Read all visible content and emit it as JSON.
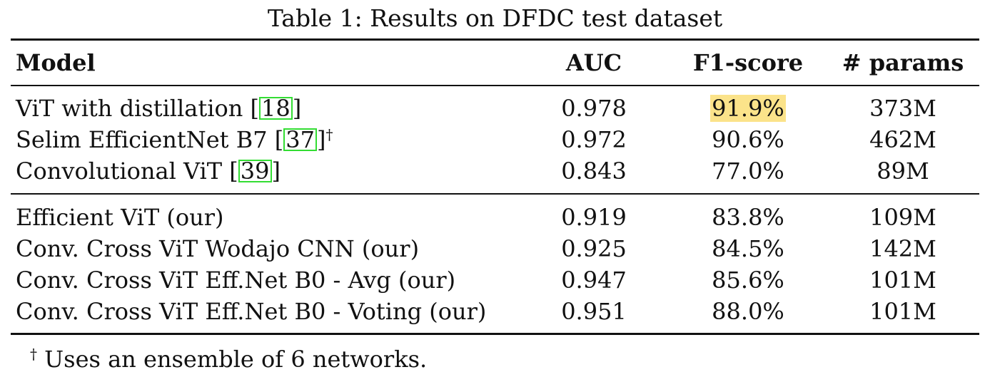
{
  "caption": "Table 1: Results on DFDC test dataset",
  "headers": {
    "model": "Model",
    "auc": "AUC",
    "f1": "F1-score",
    "params": "# params"
  },
  "group1": [
    {
      "model": "ViT with distillation [",
      "ref": "18",
      "after": "]",
      "dagger": "",
      "auc": "0.978",
      "f1": "91.9%",
      "params": "373M"
    },
    {
      "model": "Selim EfficientNet B7 [",
      "ref": "37",
      "after": "]",
      "dagger": "†",
      "auc": "0.972",
      "f1": "90.6%",
      "params": "462M"
    },
    {
      "model": "Convolutional ViT [",
      "ref": "39",
      "after": "]",
      "dagger": "",
      "auc": "0.843",
      "f1": "77.0%",
      "params": "89M"
    }
  ],
  "group2": [
    {
      "model": "Efficient ViT (our)",
      "auc": "0.919",
      "f1": "83.8%",
      "params": "109M"
    },
    {
      "model": "Conv. Cross ViT Wodajo CNN (our)",
      "auc": "0.925",
      "f1": "84.5%",
      "params": "142M"
    },
    {
      "model": "Conv. Cross ViT Eff.Net B0 - Avg (our)",
      "auc": "0.947",
      "f1": "85.6%",
      "params": "101M"
    },
    {
      "model": "Conv. Cross ViT Eff.Net B0 - Voting (our)",
      "auc": "0.951",
      "f1": "88.0%",
      "params": "101M"
    }
  ],
  "footnote": {
    "mark": "†",
    "text": " Uses an ensemble of 6 networks."
  },
  "colors": {
    "highlight": "#fbe38a",
    "ref_box": "#33dd33"
  }
}
